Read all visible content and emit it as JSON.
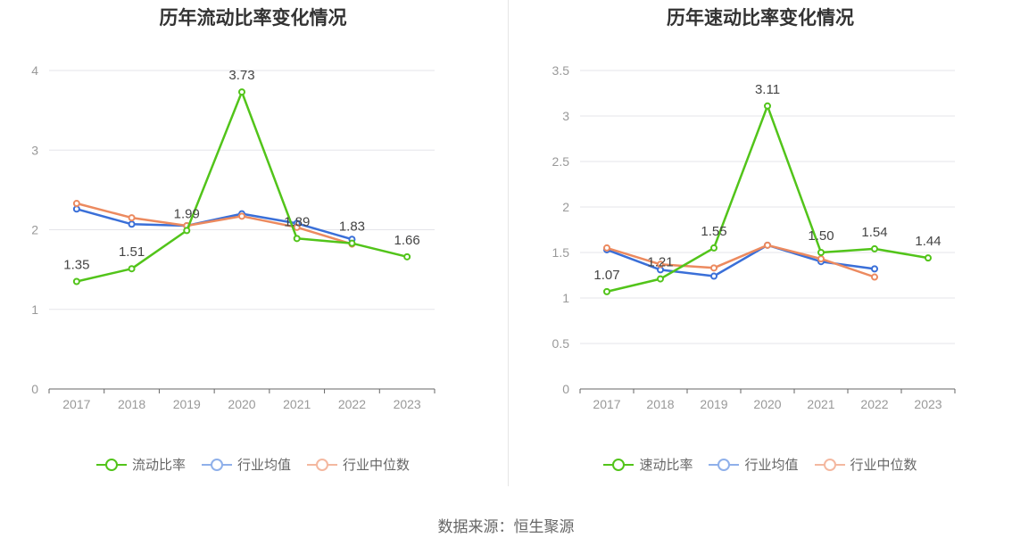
{
  "chart_data": [
    {
      "type": "line",
      "title": "历年流动比率变化情况",
      "categories": [
        "2017",
        "2018",
        "2019",
        "2020",
        "2021",
        "2022",
        "2023"
      ],
      "ylim": [
        0,
        4
      ],
      "yticks": [
        0,
        1,
        2,
        3,
        4
      ],
      "ytick_labels": [
        "0",
        "1",
        "2",
        "3",
        "4"
      ],
      "grid": true,
      "legend_position": "bottom",
      "series": [
        {
          "name": "流动比率",
          "color": "#52c41a",
          "values": [
            1.35,
            1.51,
            1.99,
            3.73,
            1.89,
            1.83,
            1.66
          ],
          "labels": [
            "1.35",
            "1.51",
            "1.99",
            "3.73",
            "1.89",
            "1.83",
            "1.66"
          ]
        },
        {
          "name": "行业均值",
          "color": "#3a6fd8",
          "values": [
            2.26,
            2.07,
            2.05,
            2.2,
            2.08,
            1.88,
            null
          ]
        },
        {
          "name": "行业中位数",
          "color": "#ec8a5f",
          "values": [
            2.33,
            2.15,
            2.05,
            2.17,
            2.03,
            1.82,
            null
          ]
        }
      ]
    },
    {
      "type": "line",
      "title": "历年速动比率变化情况",
      "categories": [
        "2017",
        "2018",
        "2019",
        "2020",
        "2021",
        "2022",
        "2023"
      ],
      "ylim": [
        0,
        3.5
      ],
      "yticks": [
        0,
        0.5,
        1,
        1.5,
        2,
        2.5,
        3,
        3.5
      ],
      "ytick_labels": [
        "0",
        "0.5",
        "1",
        "1.5",
        "2",
        "2.5",
        "3",
        "3.5"
      ],
      "grid": true,
      "legend_position": "bottom",
      "series": [
        {
          "name": "速动比率",
          "color": "#52c41a",
          "values": [
            1.07,
            1.21,
            1.55,
            3.11,
            1.5,
            1.54,
            1.44
          ],
          "labels": [
            "1.07",
            "1.21",
            "1.55",
            "3.11",
            "1.50",
            "1.54",
            "1.44"
          ]
        },
        {
          "name": "行业均值",
          "color": "#3a6fd8",
          "values": [
            1.53,
            1.31,
            1.24,
            1.58,
            1.4,
            1.32,
            null
          ]
        },
        {
          "name": "行业中位数",
          "color": "#ec8a5f",
          "values": [
            1.55,
            1.37,
            1.33,
            1.58,
            1.43,
            1.23,
            null
          ]
        }
      ]
    }
  ],
  "source_text": "数据来源：恒生聚源"
}
